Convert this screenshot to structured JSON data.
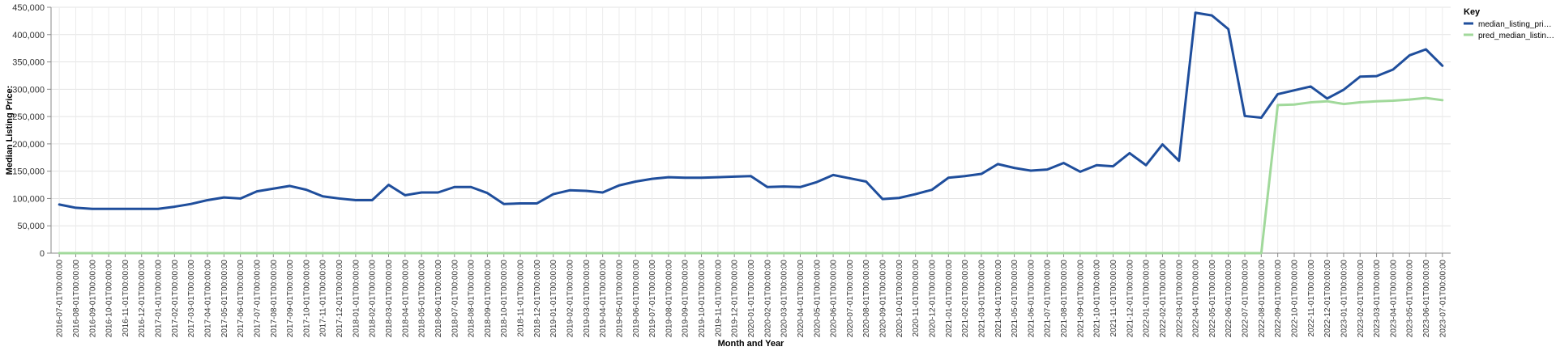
{
  "chart_data": {
    "type": "line",
    "title": "",
    "xlabel": "Month and Year",
    "ylabel": "Median Listing Price:",
    "ylim": [
      0,
      450000
    ],
    "y_ticks": [
      0,
      50000,
      100000,
      150000,
      200000,
      250000,
      300000,
      350000,
      400000,
      450000
    ],
    "y_tick_labels": [
      "0",
      "50,000",
      "100,000",
      "150,000",
      "200,000",
      "250,000",
      "300,000",
      "350,000",
      "400,000",
      "450,000"
    ],
    "grid": true,
    "legend": {
      "title": "Key",
      "position": "right",
      "entries": [
        "median_listing_pri…",
        "pred_median_listin…"
      ]
    },
    "x": [
      "2016-07-01T00:00:00",
      "2016-08-01T00:00:00",
      "2016-09-01T00:00:00",
      "2016-10-01T00:00:00",
      "2016-11-01T00:00:00",
      "2016-12-01T00:00:00",
      "2017-01-01T00:00:00",
      "2017-02-01T00:00:00",
      "2017-03-01T00:00:00",
      "2017-04-01T00:00:00",
      "2017-05-01T00:00:00",
      "2017-06-01T00:00:00",
      "2017-07-01T00:00:00",
      "2017-08-01T00:00:00",
      "2017-09-01T00:00:00",
      "2017-10-01T00:00:00",
      "2017-11-01T00:00:00",
      "2017-12-01T00:00:00",
      "2018-01-01T00:00:00",
      "2018-02-01T00:00:00",
      "2018-03-01T00:00:00",
      "2018-04-01T00:00:00",
      "2018-05-01T00:00:00",
      "2018-06-01T00:00:00",
      "2018-07-01T00:00:00",
      "2018-08-01T00:00:00",
      "2018-09-01T00:00:00",
      "2018-10-01T00:00:00",
      "2018-11-01T00:00:00",
      "2018-12-01T00:00:00",
      "2019-01-01T00:00:00",
      "2019-02-01T00:00:00",
      "2019-03-01T00:00:00",
      "2019-04-01T00:00:00",
      "2019-05-01T00:00:00",
      "2019-06-01T00:00:00",
      "2019-07-01T00:00:00",
      "2019-08-01T00:00:00",
      "2019-09-01T00:00:00",
      "2019-10-01T00:00:00",
      "2019-11-01T00:00:00",
      "2019-12-01T00:00:00",
      "2020-01-01T00:00:00",
      "2020-02-01T00:00:00",
      "2020-03-01T00:00:00",
      "2020-04-01T00:00:00",
      "2020-05-01T00:00:00",
      "2020-06-01T00:00:00",
      "2020-07-01T00:00:00",
      "2020-08-01T00:00:00",
      "2020-09-01T00:00:00",
      "2020-10-01T00:00:00",
      "2020-11-01T00:00:00",
      "2020-12-01T00:00:00",
      "2021-01-01T00:00:00",
      "2021-02-01T00:00:00",
      "2021-03-01T00:00:00",
      "2021-04-01T00:00:00",
      "2021-05-01T00:00:00",
      "2021-06-01T00:00:00",
      "2021-07-01T00:00:00",
      "2021-08-01T00:00:00",
      "2021-09-01T00:00:00",
      "2021-10-01T00:00:00",
      "2021-11-01T00:00:00",
      "2021-12-01T00:00:00",
      "2022-01-01T00:00:00",
      "2022-02-01T00:00:00",
      "2022-03-01T00:00:00",
      "2022-04-01T00:00:00",
      "2022-05-01T00:00:00",
      "2022-06-01T00:00:00",
      "2022-07-01T00:00:00",
      "2022-08-01T00:00:00",
      "2022-09-01T00:00:00",
      "2022-10-01T00:00:00",
      "2022-11-01T00:00:00",
      "2022-12-01T00:00:00",
      "2023-01-01T00:00:00",
      "2023-02-01T00:00:00",
      "2023-03-01T00:00:00",
      "2023-04-01T00:00:00",
      "2023-05-01T00:00:00",
      "2023-06-01T00:00:00",
      "2023-07-01T00:00:00"
    ],
    "series": [
      {
        "name": "median_listing_pri…",
        "color": "#1f4e9c",
        "values": [
          89000,
          83000,
          81000,
          81000,
          81000,
          81000,
          81000,
          85000,
          90000,
          97000,
          102000,
          100000,
          113000,
          118000,
          123000,
          116000,
          104000,
          100000,
          97000,
          97000,
          125000,
          106000,
          111000,
          111000,
          121000,
          121000,
          110000,
          90000,
          91000,
          91000,
          108000,
          115000,
          114000,
          111000,
          124000,
          131000,
          136000,
          139000,
          138000,
          138000,
          139000,
          140000,
          141000,
          121000,
          122000,
          121000,
          130000,
          143000,
          137000,
          131000,
          99000,
          101000,
          108000,
          116000,
          138000,
          141000,
          145000,
          163000,
          156000,
          151000,
          153000,
          165000,
          149000,
          161000,
          159000,
          183000,
          161000,
          199000,
          169000,
          440000,
          435000,
          410000,
          251000,
          248000,
          291000,
          298000,
          305000,
          283000,
          299000,
          323000,
          324000,
          336000,
          362000,
          373000,
          343000
        ]
      },
      {
        "name": "pred_median_listin…",
        "color": "#a1d99b",
        "values": [
          0,
          0,
          0,
          0,
          0,
          0,
          0,
          0,
          0,
          0,
          0,
          0,
          0,
          0,
          0,
          0,
          0,
          0,
          0,
          0,
          0,
          0,
          0,
          0,
          0,
          0,
          0,
          0,
          0,
          0,
          0,
          0,
          0,
          0,
          0,
          0,
          0,
          0,
          0,
          0,
          0,
          0,
          0,
          0,
          0,
          0,
          0,
          0,
          0,
          0,
          0,
          0,
          0,
          0,
          0,
          0,
          0,
          0,
          0,
          0,
          0,
          0,
          0,
          0,
          0,
          0,
          0,
          0,
          0,
          0,
          0,
          0,
          0,
          0,
          271000,
          272000,
          276000,
          278000,
          273000,
          276000,
          278000,
          279000,
          281000,
          284000,
          280000
        ]
      }
    ]
  }
}
